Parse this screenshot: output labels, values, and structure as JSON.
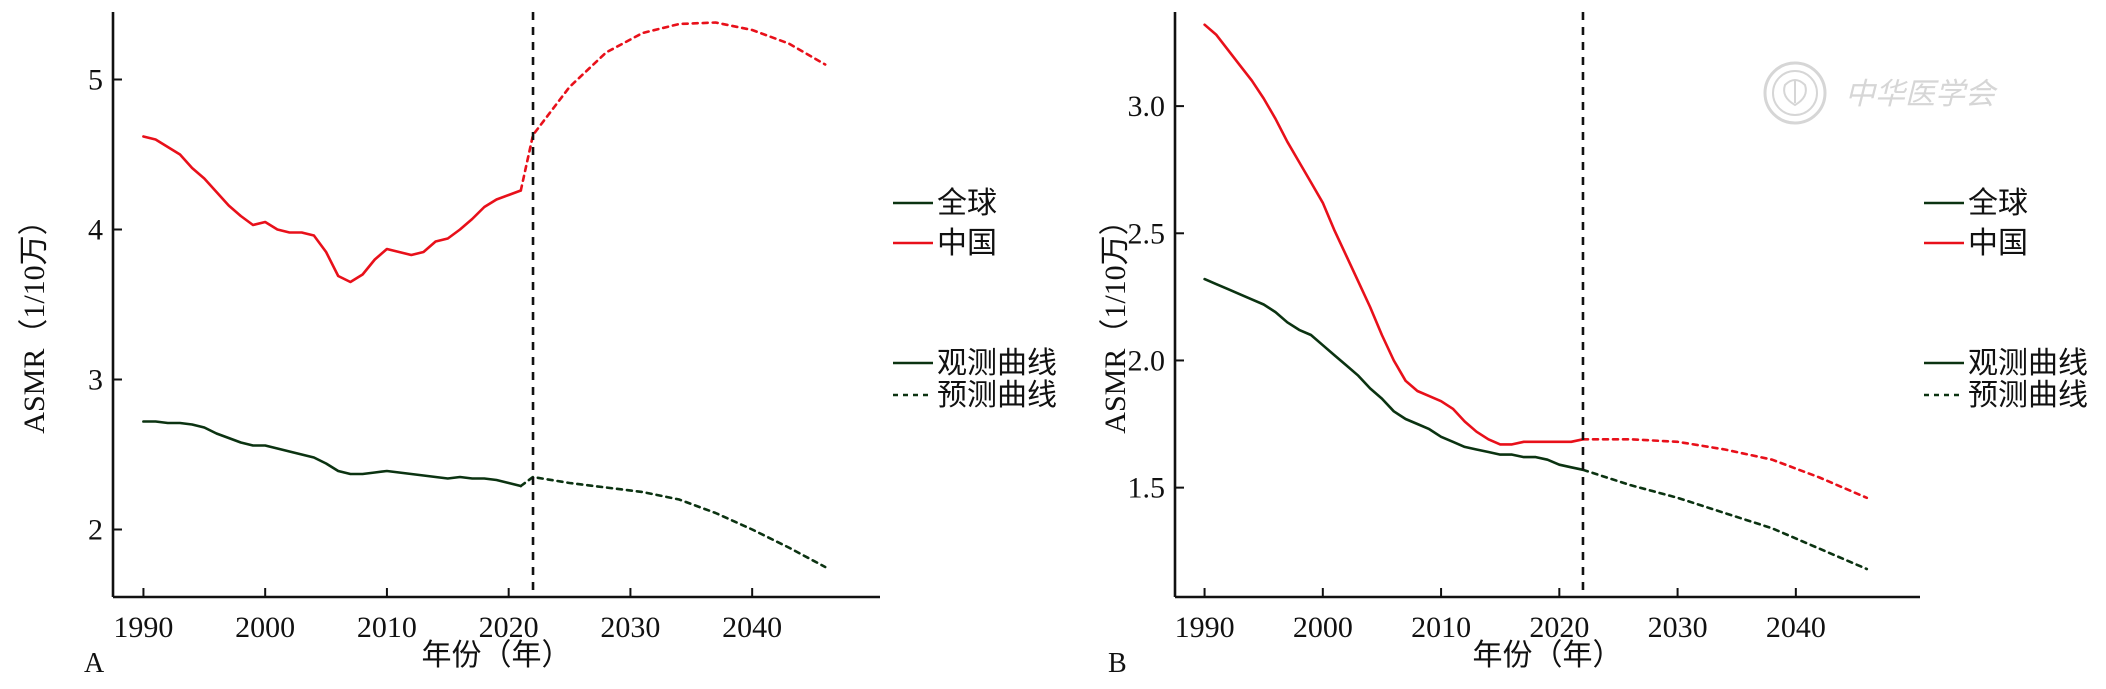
{
  "watermark": {
    "text": "中华医学会",
    "icon": "seal-icon"
  },
  "colors": {
    "global": "#0b3311",
    "china": "#e8101a",
    "axis": "#111111",
    "divider": "#111111"
  },
  "chart_data": [
    {
      "panel": "A",
      "type": "line",
      "xlabel": "年份（年）",
      "ylabel": "ASMR（1/10万）",
      "xlim": [
        1987.5,
        2050.5
      ],
      "ylim": [
        1.55,
        5.45
      ],
      "xticks": [
        1990,
        2000,
        2010,
        2020,
        2030,
        2040
      ],
      "yticks": [
        2,
        3,
        4,
        5
      ],
      "divider_x": 2022,
      "legend": {
        "placement": "right",
        "region_entries": [
          "全球",
          "中国"
        ],
        "style_entries": [
          "观测曲线",
          "预测曲线"
        ]
      },
      "series": [
        {
          "name": "全球",
          "style": "observed",
          "color": "#0b3311",
          "x": [
            1990,
            1991,
            1992,
            1993,
            1994,
            1995,
            1996,
            1997,
            1998,
            1999,
            2000,
            2001,
            2002,
            2003,
            2004,
            2005,
            2006,
            2007,
            2008,
            2009,
            2010,
            2011,
            2012,
            2013,
            2014,
            2015,
            2016,
            2017,
            2018,
            2019,
            2020,
            2021
          ],
          "y": [
            2.72,
            2.72,
            2.71,
            2.71,
            2.7,
            2.68,
            2.64,
            2.61,
            2.58,
            2.56,
            2.56,
            2.54,
            2.52,
            2.5,
            2.48,
            2.44,
            2.39,
            2.37,
            2.37,
            2.38,
            2.39,
            2.38,
            2.37,
            2.36,
            2.35,
            2.34,
            2.35,
            2.34,
            2.34,
            2.33,
            2.31,
            2.29
          ]
        },
        {
          "name": "全球",
          "style": "predicted",
          "color": "#0b3311",
          "x": [
            2021,
            2022,
            2025,
            2028,
            2031,
            2034,
            2037,
            2040,
            2043,
            2046
          ],
          "y": [
            2.29,
            2.35,
            2.31,
            2.28,
            2.25,
            2.2,
            2.11,
            2.0,
            1.88,
            1.75
          ]
        },
        {
          "name": "中国",
          "style": "observed",
          "color": "#e8101a",
          "x": [
            1990,
            1991,
            1992,
            1993,
            1994,
            1995,
            1996,
            1997,
            1998,
            1999,
            2000,
            2001,
            2002,
            2003,
            2004,
            2005,
            2006,
            2007,
            2008,
            2009,
            2010,
            2011,
            2012,
            2013,
            2014,
            2015,
            2016,
            2017,
            2018,
            2019,
            2020,
            2021
          ],
          "y": [
            4.62,
            4.6,
            4.55,
            4.5,
            4.41,
            4.34,
            4.25,
            4.16,
            4.09,
            4.03,
            4.05,
            4.0,
            3.98,
            3.98,
            3.96,
            3.85,
            3.69,
            3.65,
            3.7,
            3.8,
            3.87,
            3.85,
            3.83,
            3.85,
            3.92,
            3.94,
            4.0,
            4.07,
            4.15,
            4.2,
            4.23,
            4.26
          ]
        },
        {
          "name": "中国",
          "style": "predicted",
          "color": "#e8101a",
          "x": [
            2021,
            2022,
            2025,
            2028,
            2031,
            2034,
            2037,
            2040,
            2043,
            2046
          ],
          "y": [
            4.26,
            4.63,
            4.95,
            5.18,
            5.31,
            5.37,
            5.38,
            5.33,
            5.24,
            5.1
          ]
        }
      ]
    },
    {
      "panel": "B",
      "type": "line",
      "xlabel": "年份（年）",
      "ylabel": "ASMR（1/10万）",
      "xlim": [
        1987.5,
        2050.5
      ],
      "ylim": [
        1.07,
        3.37
      ],
      "xticks": [
        1990,
        2000,
        2010,
        2020,
        2030,
        2040
      ],
      "yticks": [
        1.5,
        2.0,
        2.5,
        3.0
      ],
      "ytick_labels": [
        "1.5",
        "2.0",
        "2.5",
        "3.0"
      ],
      "divider_x": 2022,
      "legend": {
        "placement": "right",
        "region_entries": [
          "全球",
          "中国"
        ],
        "style_entries": [
          "观测曲线",
          "预测曲线"
        ]
      },
      "series": [
        {
          "name": "全球",
          "style": "observed",
          "color": "#0b3311",
          "x": [
            1990,
            1991,
            1992,
            1993,
            1994,
            1995,
            1996,
            1997,
            1998,
            1999,
            2000,
            2001,
            2002,
            2003,
            2004,
            2005,
            2006,
            2007,
            2008,
            2009,
            2010,
            2011,
            2012,
            2013,
            2014,
            2015,
            2016,
            2017,
            2018,
            2019,
            2020,
            2021,
            2022
          ],
          "y": [
            2.32,
            2.3,
            2.28,
            2.26,
            2.24,
            2.22,
            2.19,
            2.15,
            2.12,
            2.1,
            2.06,
            2.02,
            1.98,
            1.94,
            1.89,
            1.85,
            1.8,
            1.77,
            1.75,
            1.73,
            1.7,
            1.68,
            1.66,
            1.65,
            1.64,
            1.63,
            1.63,
            1.62,
            1.62,
            1.61,
            1.59,
            1.58,
            1.57
          ]
        },
        {
          "name": "全球",
          "style": "predicted",
          "color": "#0b3311",
          "x": [
            2022,
            2026,
            2030,
            2034,
            2038,
            2042,
            2046
          ],
          "y": [
            1.57,
            1.51,
            1.46,
            1.4,
            1.34,
            1.26,
            1.18
          ]
        },
        {
          "name": "中国",
          "style": "observed",
          "color": "#e8101a",
          "x": [
            1990,
            1991,
            1992,
            1993,
            1994,
            1995,
            1996,
            1997,
            1998,
            1999,
            2000,
            2001,
            2002,
            2003,
            2004,
            2005,
            2006,
            2007,
            2008,
            2009,
            2010,
            2011,
            2012,
            2013,
            2014,
            2015,
            2016,
            2017,
            2018,
            2019,
            2020,
            2021,
            2022
          ],
          "y": [
            3.32,
            3.28,
            3.22,
            3.16,
            3.1,
            3.03,
            2.95,
            2.86,
            2.78,
            2.7,
            2.62,
            2.51,
            2.41,
            2.31,
            2.21,
            2.1,
            2.0,
            1.92,
            1.88,
            1.86,
            1.84,
            1.81,
            1.76,
            1.72,
            1.69,
            1.67,
            1.67,
            1.68,
            1.68,
            1.68,
            1.68,
            1.68,
            1.69
          ]
        },
        {
          "name": "中国",
          "style": "predicted",
          "color": "#e8101a",
          "x": [
            2022,
            2026,
            2030,
            2034,
            2038,
            2042,
            2046
          ],
          "y": [
            1.69,
            1.69,
            1.68,
            1.65,
            1.61,
            1.54,
            1.46
          ]
        }
      ]
    }
  ]
}
